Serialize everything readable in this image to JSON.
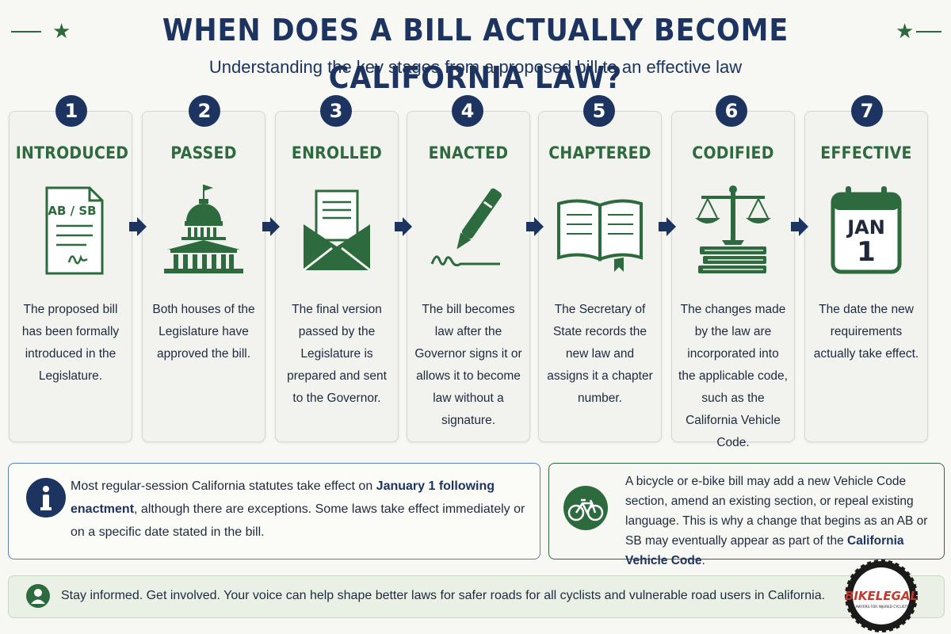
{
  "header": {
    "title": "WHEN DOES A BILL ACTUALLY BECOME CALIFORNIA LAW?",
    "subtitle": "Understanding the key stages from a proposed bill to an effective law"
  },
  "steps": [
    {
      "number": "1",
      "title": "INTRODUCED",
      "icon": "bill-document-icon",
      "icon_text": "AB / SB",
      "description": "The proposed bill has been formally introduced in the Legislature."
    },
    {
      "number": "2",
      "title": "PASSED",
      "icon": "capitol-building-icon",
      "description": "Both houses of the Legislature have approved the bill."
    },
    {
      "number": "3",
      "title": "ENROLLED",
      "icon": "envelope-letter-icon",
      "description": "The final version passed by the Legislature is prepared and sent to the Governor."
    },
    {
      "number": "4",
      "title": "ENACTED",
      "icon": "pen-signature-icon",
      "description": "The bill becomes law after the Governor signs it or allows it to become law without a signature."
    },
    {
      "number": "5",
      "title": "CHAPTERED",
      "icon": "open-book-icon",
      "description": "The Secretary of State records the new law and assigns it a chapter number."
    },
    {
      "number": "6",
      "title": "CODIFIED",
      "icon": "scales-of-justice-icon",
      "description": "The changes made by the law are incorporated into the applicable code, such as the California Vehicle Code."
    },
    {
      "number": "7",
      "title": "EFFECTIVE",
      "icon": "calendar-icon",
      "icon_month": "JAN",
      "icon_day": "1",
      "description": "The date the new requirements actually take effect."
    }
  ],
  "info_note": {
    "icon": "info-icon",
    "text_before": "Most regular-session California statutes take effect on ",
    "text_bold": "January 1 following enactment",
    "text_after": ", although there are exceptions. Some laws take effect immediately or on a specific date stated in the bill."
  },
  "bike_note": {
    "icon": "bicycle-icon",
    "text_before": "A bicycle or e-bike bill may add a new Vehicle Code section, amend an existing section, or repeal existing language. This is why a change that begins as an AB or SB may eventually appear as part of the ",
    "text_bold": "California Vehicle Code",
    "text_after": "."
  },
  "footer": {
    "icon": "person-icon",
    "text": "Stay informed. Get involved. Your voice can help shape better laws for safer roads for all cyclists and vulnerable road users in California."
  },
  "logo": {
    "brand": "BIKELEGAL",
    "tagline": "LAWYERS FOR INJURED CYCLISTS"
  },
  "colors": {
    "navy": "#1d3461",
    "green": "#2d6a3e",
    "card_bg": "#f2f3ef",
    "page_bg": "#f7f7f3"
  }
}
